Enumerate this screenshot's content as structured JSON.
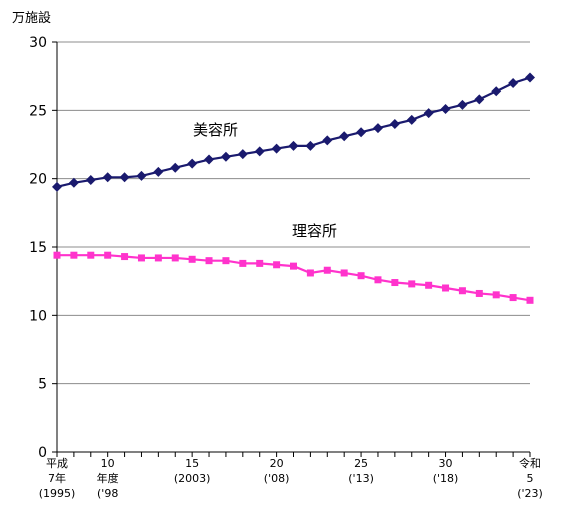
{
  "chart_data": {
    "type": "line",
    "unit_label": "万施設",
    "ylim": [
      0,
      30
    ],
    "y_ticks": [
      0,
      5,
      10,
      15,
      20,
      25,
      30
    ],
    "grid": true,
    "x": [
      1995,
      1996,
      1997,
      1998,
      1999,
      2000,
      2001,
      2002,
      2003,
      2004,
      2005,
      2006,
      2007,
      2008,
      2009,
      2010,
      2011,
      2012,
      2013,
      2014,
      2015,
      2016,
      2017,
      2018,
      2019,
      2020,
      2021,
      2022,
      2023
    ],
    "x_tick_labels": [
      {
        "year": 1995,
        "lines": [
          "平成",
          "7年",
          "(1995)"
        ]
      },
      {
        "year": 1998,
        "lines": [
          "10",
          "年度",
          "('98"
        ]
      },
      {
        "year": 2003,
        "lines": [
          "15",
          "(2003)"
        ]
      },
      {
        "year": 2008,
        "lines": [
          "20",
          "('08)"
        ]
      },
      {
        "year": 2013,
        "lines": [
          "25",
          "('13)"
        ]
      },
      {
        "year": 2018,
        "lines": [
          "30",
          "('18)"
        ]
      },
      {
        "year": 2023,
        "lines": [
          "令和",
          "5",
          "('23)"
        ]
      }
    ],
    "series": [
      {
        "name": "美容所",
        "color": "#1a1a6e",
        "marker": "diamond",
        "values": [
          19.4,
          19.7,
          19.9,
          20.1,
          20.1,
          20.2,
          20.5,
          20.8,
          21.1,
          21.4,
          21.6,
          21.8,
          22.0,
          22.2,
          22.4,
          22.4,
          22.8,
          23.1,
          23.4,
          23.7,
          24.0,
          24.3,
          24.8,
          25.1,
          25.4,
          25.8,
          26.4,
          27.0,
          27.4
        ]
      },
      {
        "name": "理容所",
        "color": "#ff33cc",
        "marker": "square",
        "values": [
          14.4,
          14.4,
          14.4,
          14.4,
          14.3,
          14.2,
          14.2,
          14.2,
          14.1,
          14.0,
          14.0,
          13.8,
          13.8,
          13.7,
          13.6,
          13.1,
          13.3,
          13.1,
          12.9,
          12.6,
          12.4,
          12.3,
          12.2,
          12.0,
          11.8,
          11.6,
          11.5,
          11.3,
          11.1
        ]
      }
    ]
  }
}
